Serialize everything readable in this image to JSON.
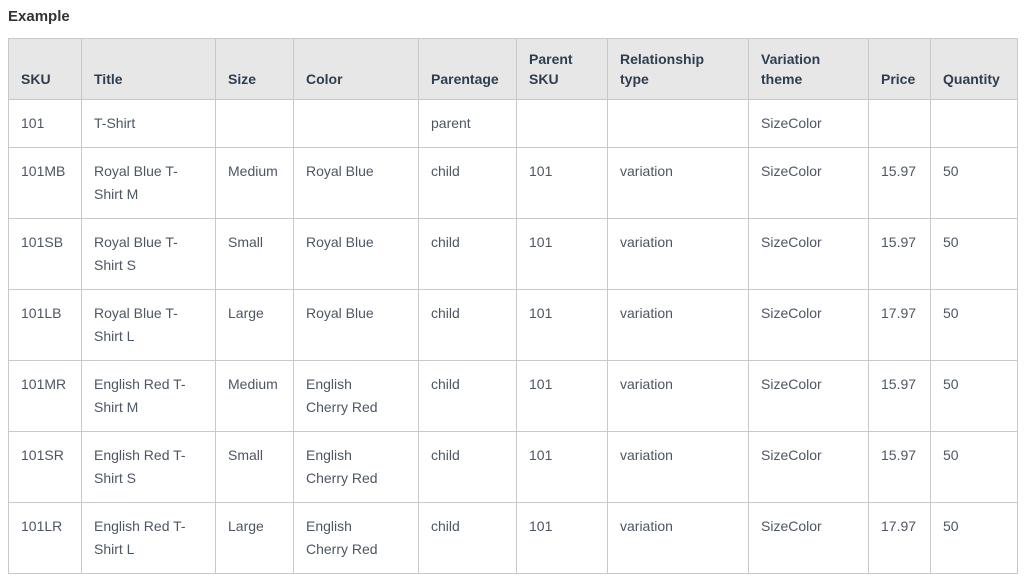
{
  "page": {
    "section_label": "Example"
  },
  "colors": {
    "header_background": "#e7e7e7",
    "table_border": "#c9c9c9",
    "header_text": "#2e3e4f",
    "body_text": "#4d5663",
    "label_text": "#333333"
  },
  "table": {
    "columns": [
      {
        "key": "sku",
        "label": "SKU"
      },
      {
        "key": "title",
        "label": "Title"
      },
      {
        "key": "size",
        "label": "Size"
      },
      {
        "key": "color",
        "label": "Color"
      },
      {
        "key": "parentage",
        "label": "Parentage"
      },
      {
        "key": "parent-sku",
        "label": "Parent SKU"
      },
      {
        "key": "relationship-type",
        "label": "Relationship type"
      },
      {
        "key": "variation-theme",
        "label": "Variation theme"
      },
      {
        "key": "price",
        "label": "Price"
      },
      {
        "key": "quantity",
        "label": "Quantity"
      }
    ],
    "rows": [
      [
        "101",
        "T-Shirt",
        "",
        "",
        "parent",
        "",
        "",
        "SizeColor",
        "",
        ""
      ],
      [
        "101MB",
        "Royal Blue T-Shirt M",
        "Medium",
        "Royal Blue",
        "child",
        "101",
        "variation",
        "SizeColor",
        "15.97",
        "50"
      ],
      [
        "101SB",
        "Royal Blue T-Shirt S",
        "Small",
        "Royal Blue",
        "child",
        "101",
        "variation",
        "SizeColor",
        "15.97",
        "50"
      ],
      [
        "101LB",
        "Royal Blue T-Shirt L",
        "Large",
        "Royal Blue",
        "child",
        "101",
        "variation",
        "SizeColor",
        "17.97",
        "50"
      ],
      [
        "101MR",
        "English Red T-Shirt M",
        "Medium",
        "English Cherry Red",
        "child",
        "101",
        "variation",
        "SizeColor",
        "15.97",
        "50"
      ],
      [
        "101SR",
        "English Red T-Shirt S",
        "Small",
        "English Cherry Red",
        "child",
        "101",
        "variation",
        "SizeColor",
        "15.97",
        "50"
      ],
      [
        "101LR",
        "English Red T-Shirt L",
        "Large",
        "English Cherry Red",
        "child",
        "101",
        "variation",
        "SizeColor",
        "17.97",
        "50"
      ]
    ]
  }
}
